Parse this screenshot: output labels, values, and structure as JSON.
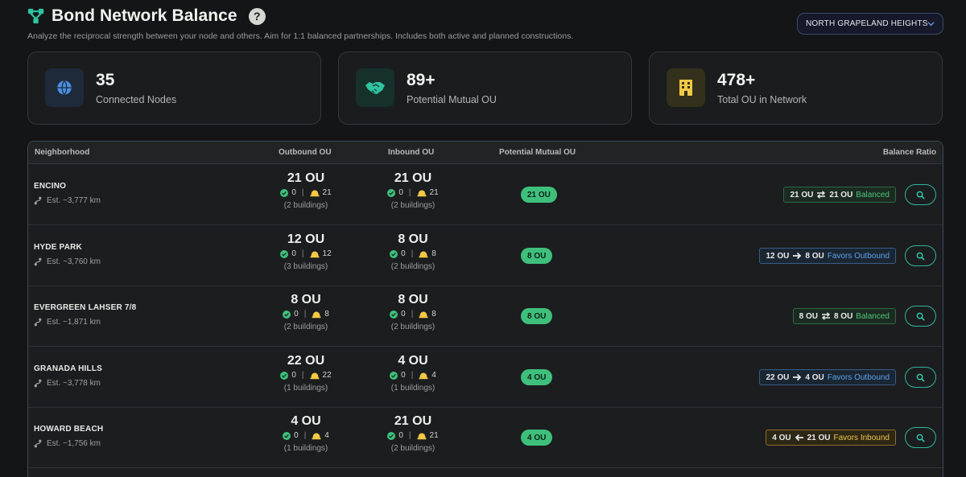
{
  "header": {
    "title": "Bond Network Balance",
    "help": "?",
    "subtitle": "Analyze the reciprocal strength between your node and others. Aim for 1:1 balanced partnerships. Includes both active and planned constructions.",
    "region": "NORTH GRAPELAND HEIGHTS"
  },
  "stats": [
    {
      "value": "35",
      "label": "Connected Nodes",
      "icon": "globe-icon",
      "color": "#4a90e2"
    },
    {
      "value": "89+",
      "label": "Potential Mutual OU",
      "icon": "handshake-icon",
      "color": "#2ec4a0"
    },
    {
      "value": "478+",
      "label": "Total OU in Network",
      "icon": "building-icon",
      "color": "#f3c945"
    }
  ],
  "table": {
    "headers": {
      "neighborhood": "Neighborhood",
      "outbound": "Outbound OU",
      "inbound": "Inbound OU",
      "mutual": "Potential Mutual OU",
      "ratio": "Balance Ratio"
    },
    "rows": [
      {
        "name": "ENCINO",
        "dist": "Est. ~3,777 km",
        "out_total": "21 OU",
        "out_active": "0",
        "out_planned": "21",
        "out_buildings": "(2 buildings)",
        "in_total": "21 OU",
        "in_active": "0",
        "in_planned": "21",
        "in_buildings": "(2 buildings)",
        "mutual": "21 OU",
        "ratio_left": "21 OU",
        "ratio_right": "21 OU",
        "ratio_status": "Balanced",
        "ratio_type": "balanced"
      },
      {
        "name": "HYDE PARK",
        "dist": "Est. ~3,760 km",
        "out_total": "12 OU",
        "out_active": "0",
        "out_planned": "12",
        "out_buildings": "(3 buildings)",
        "in_total": "8 OU",
        "in_active": "0",
        "in_planned": "8",
        "in_buildings": "(2 buildings)",
        "mutual": "8 OU",
        "ratio_left": "12 OU",
        "ratio_right": "8 OU",
        "ratio_status": "Favors Outbound",
        "ratio_type": "outbound"
      },
      {
        "name": "EVERGREEN LAHSER 7/8",
        "dist": "Est. ~1,871 km",
        "out_total": "8 OU",
        "out_active": "0",
        "out_planned": "8",
        "out_buildings": "(2 buildings)",
        "in_total": "8 OU",
        "in_active": "0",
        "in_planned": "8",
        "in_buildings": "(2 buildings)",
        "mutual": "8 OU",
        "ratio_left": "8 OU",
        "ratio_right": "8 OU",
        "ratio_status": "Balanced",
        "ratio_type": "balanced"
      },
      {
        "name": "GRANADA HILLS",
        "dist": "Est. ~3,778 km",
        "out_total": "22 OU",
        "out_active": "0",
        "out_planned": "22",
        "out_buildings": "(1 buildings)",
        "in_total": "4 OU",
        "in_active": "0",
        "in_planned": "4",
        "in_buildings": "(1 buildings)",
        "mutual": "4 OU",
        "ratio_left": "22 OU",
        "ratio_right": "4 OU",
        "ratio_status": "Favors Outbound",
        "ratio_type": "outbound"
      },
      {
        "name": "HOWARD BEACH",
        "dist": "Est. ~1,756 km",
        "out_total": "4 OU",
        "out_active": "0",
        "out_planned": "4",
        "out_buildings": "(1 buildings)",
        "in_total": "21 OU",
        "in_active": "0",
        "in_planned": "21",
        "in_buildings": "(2 buildings)",
        "mutual": "4 OU",
        "ratio_left": "4 OU",
        "ratio_right": "21 OU",
        "ratio_status": "Favors Inbound",
        "ratio_type": "inbound"
      }
    ]
  }
}
